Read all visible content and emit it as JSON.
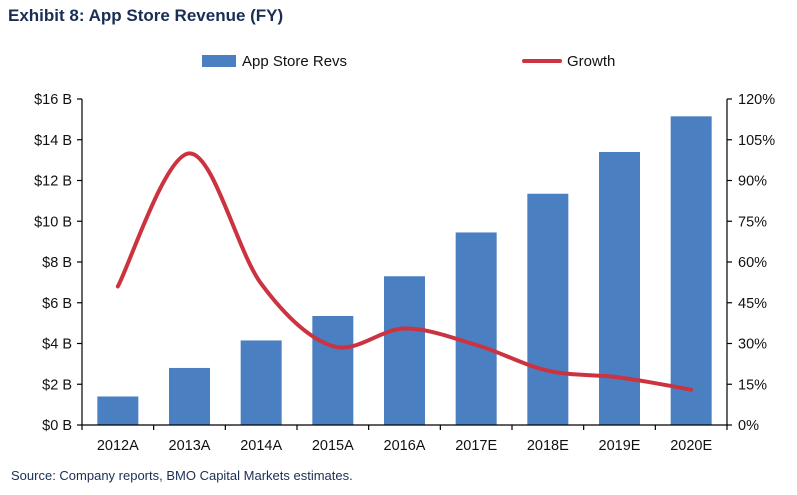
{
  "header": {
    "title": "Exhibit 8:  App Store Revenue (FY)"
  },
  "footer": {
    "source": "Source: Company reports, BMO Capital Markets estimates."
  },
  "chart_data": {
    "type": "bar",
    "categories": [
      "2012A",
      "2013A",
      "2014A",
      "2015A",
      "2016A",
      "2017E",
      "2018E",
      "2019E",
      "2020E"
    ],
    "series": [
      {
        "name": "App Store Revs",
        "type": "bar",
        "axis": "left",
        "color": "#4a7fc1",
        "values": [
          1.4,
          2.8,
          4.15,
          5.35,
          7.3,
          9.45,
          11.35,
          13.4,
          15.15
        ]
      },
      {
        "name": "Growth",
        "type": "line",
        "axis": "right",
        "color": "#cc3340",
        "values": [
          51,
          100,
          52,
          29,
          35.5,
          29.5,
          20,
          17.5,
          13
        ]
      }
    ],
    "y_left": {
      "min": 0,
      "max": 16,
      "step": 2,
      "tick_labels": [
        "$0 B",
        "$2 B",
        "$4 B",
        "$6 B",
        "$8 B",
        "$10 B",
        "$12 B",
        "$14 B",
        "$16 B"
      ]
    },
    "y_right": {
      "min": 0,
      "max": 120,
      "step": 15,
      "tick_labels": [
        "0%",
        "15%",
        "30%",
        "45%",
        "60%",
        "75%",
        "90%",
        "105%",
        "120%"
      ]
    },
    "grid": false,
    "legend": "top"
  }
}
